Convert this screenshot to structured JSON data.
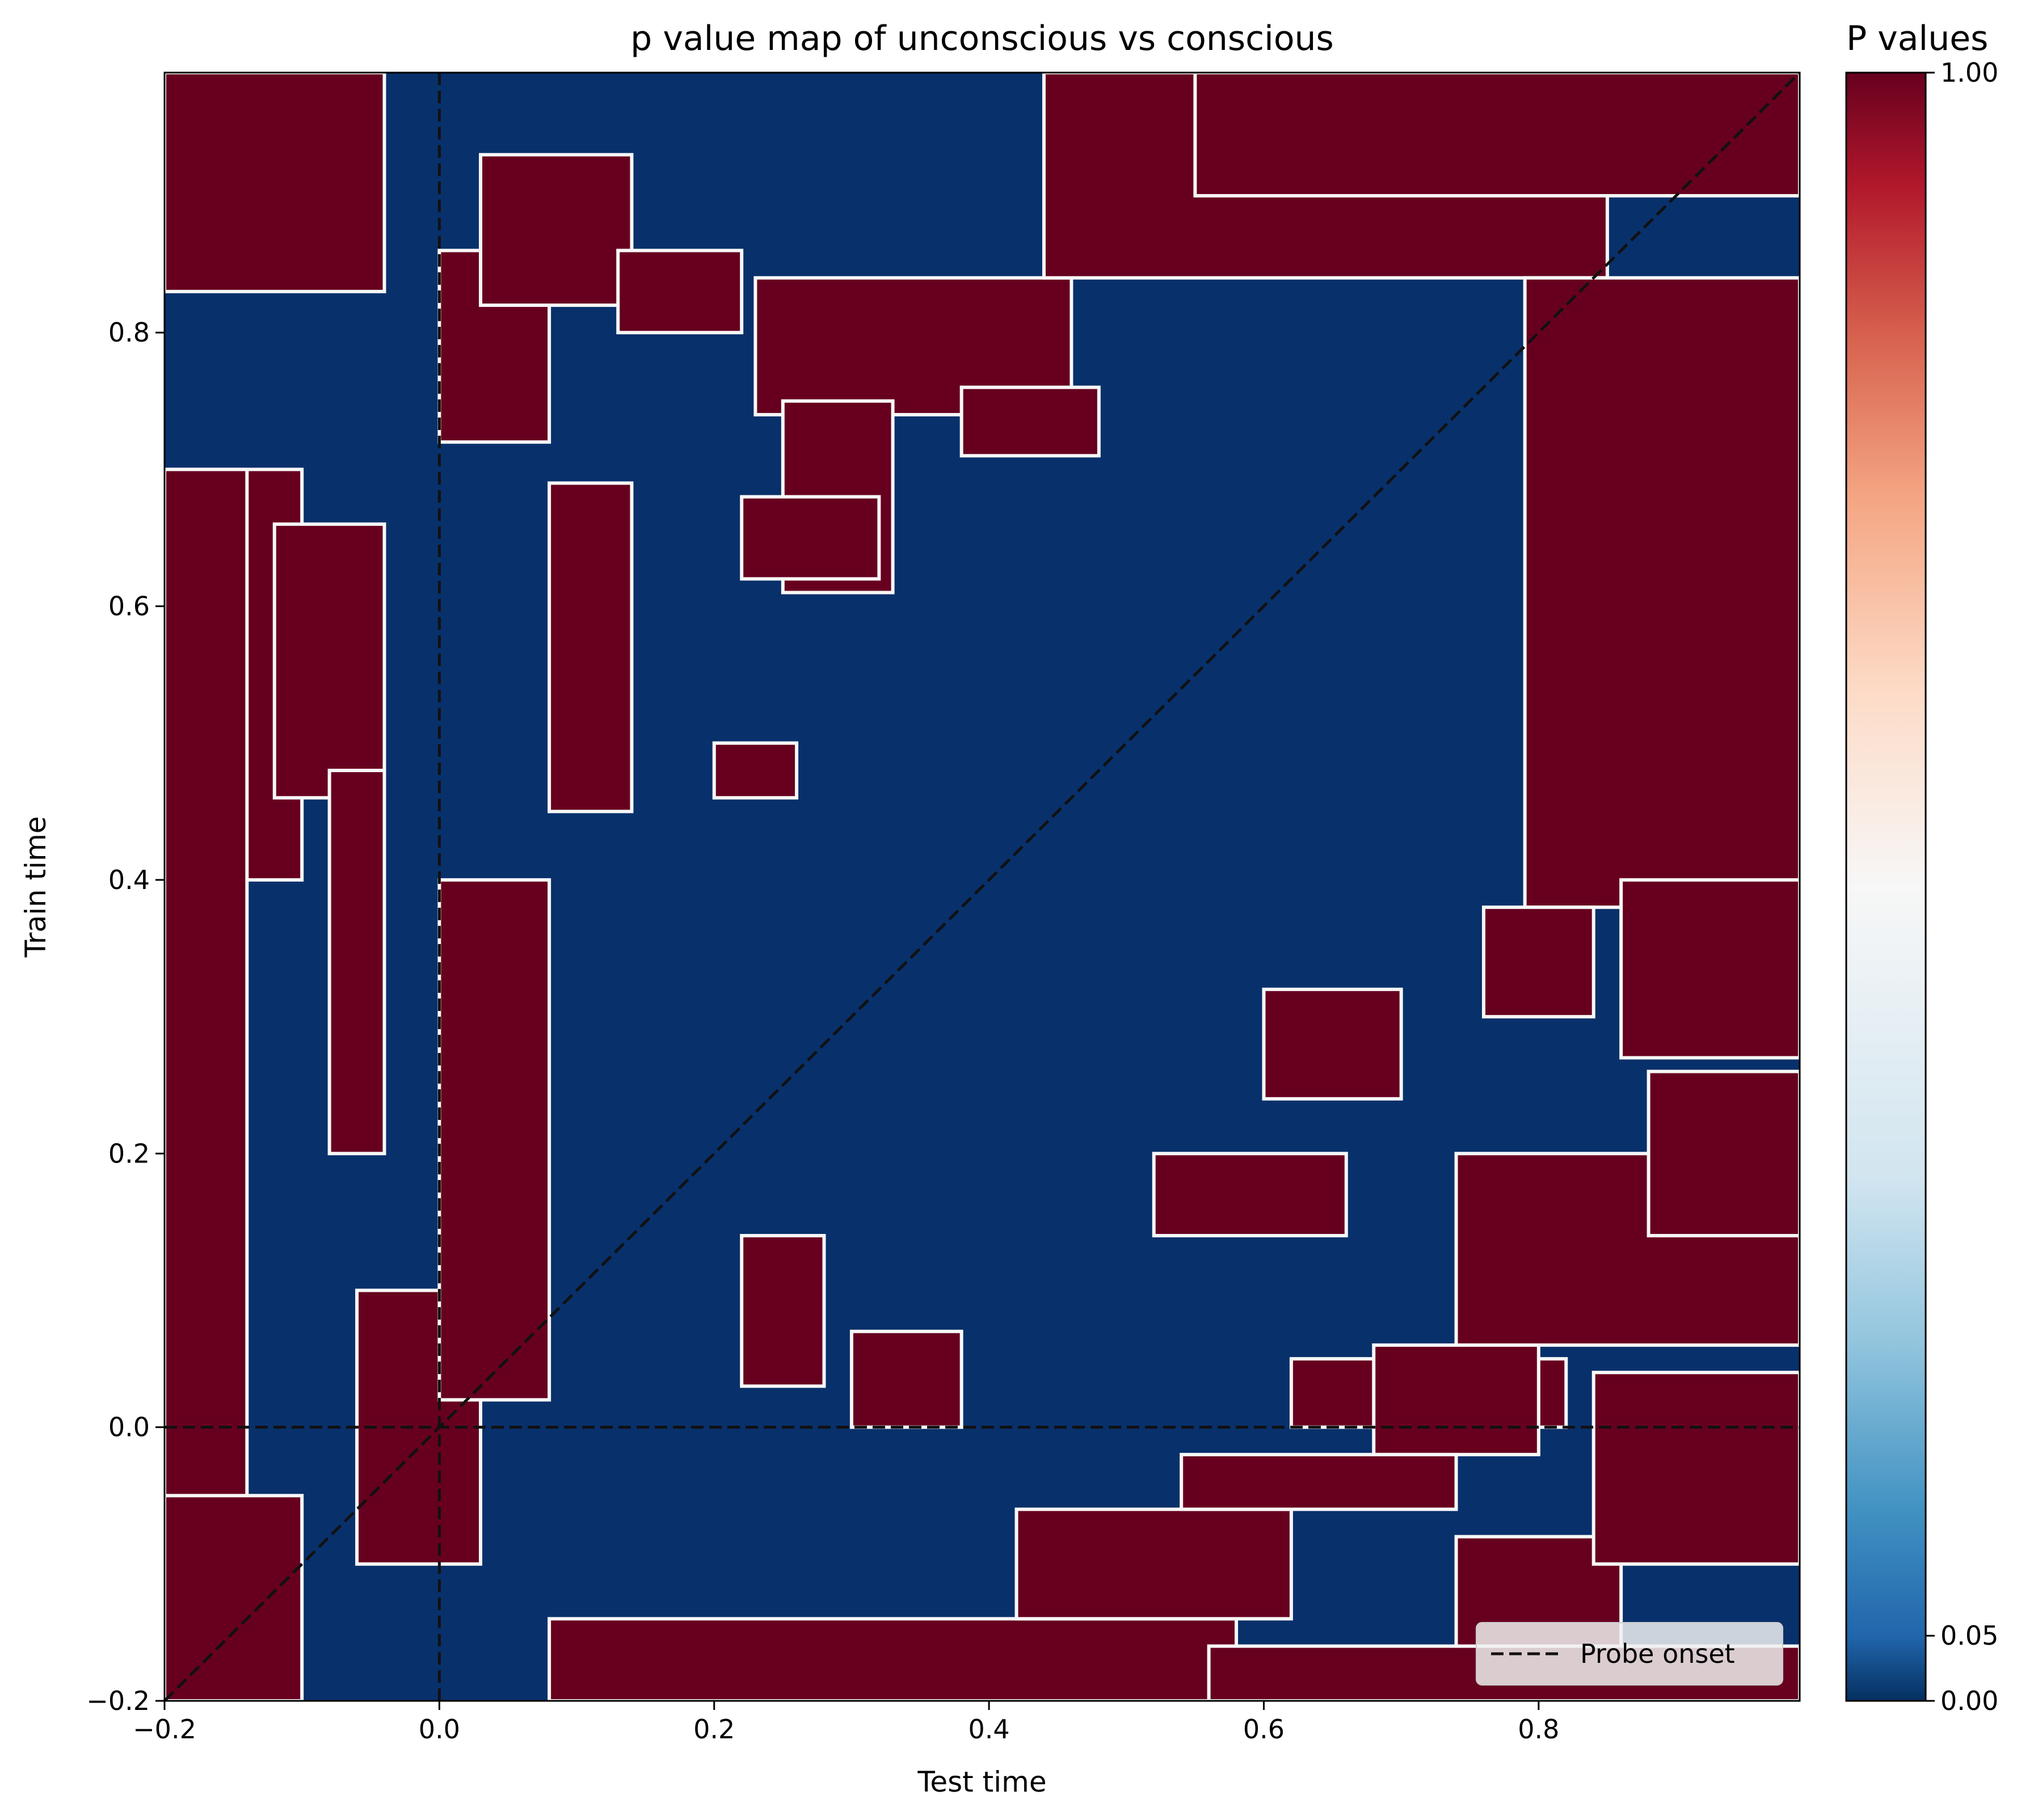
{
  "chart_data": {
    "type": "heatmap",
    "title": "p value map of unconscious vs conscious",
    "xlabel": "Test time",
    "ylabel": "Train time",
    "xlim": [
      -0.2,
      0.99
    ],
    "ylim": [
      -0.2,
      0.99
    ],
    "x_ticks": [
      "−0.2",
      "0.0",
      "0.2",
      "0.4",
      "0.6",
      "0.8"
    ],
    "y_ticks": [
      "−0.2",
      "0.0",
      "0.2",
      "0.4",
      "0.6",
      "0.8"
    ],
    "x_tick_values": [
      -0.2,
      0.0,
      0.2,
      0.4,
      0.6,
      0.8
    ],
    "y_tick_values": [
      -0.2,
      0.0,
      0.2,
      0.4,
      0.6,
      0.8
    ],
    "colorbar": {
      "title": "P values",
      "ticks": [
        "0.00",
        "0.05",
        "1.00"
      ],
      "tick_values": [
        0.0,
        0.05,
        1.0
      ],
      "colormap": "RdBu_r"
    },
    "colors": {
      "significant": "#08306b",
      "nonsignificant": "#67001f",
      "boundary": "#f7f7f7"
    },
    "reference_lines": {
      "probe_onset_x": 0.0,
      "probe_onset_y": 0.0,
      "diagonal": true,
      "style": "dashed",
      "color": "#111111"
    },
    "legend": {
      "placement": "lower right",
      "entries": [
        "Probe onset"
      ]
    },
    "nonsignificant_regions": [
      {
        "x": [
          -0.2,
          -0.04
        ],
        "y": [
          0.83,
          0.99
        ]
      },
      {
        "x": [
          -0.2,
          -0.1
        ],
        "y": [
          0.4,
          0.7
        ]
      },
      {
        "x": [
          -0.2,
          -0.14
        ],
        "y": [
          -0.2,
          0.7
        ]
      },
      {
        "x": [
          -0.12,
          -0.04
        ],
        "y": [
          0.46,
          0.66
        ]
      },
      {
        "x": [
          -0.08,
          -0.04
        ],
        "y": [
          0.2,
          0.48
        ]
      },
      {
        "x": [
          -0.06,
          0.03
        ],
        "y": [
          -0.1,
          0.1
        ]
      },
      {
        "x": [
          -0.2,
          -0.1
        ],
        "y": [
          -0.2,
          -0.05
        ]
      },
      {
        "x": [
          0.0,
          0.08
        ],
        "y": [
          0.72,
          0.86
        ]
      },
      {
        "x": [
          0.0,
          0.08
        ],
        "y": [
          0.02,
          0.4
        ]
      },
      {
        "x": [
          0.08,
          0.14
        ],
        "y": [
          0.45,
          0.69
        ]
      },
      {
        "x": [
          0.03,
          0.14
        ],
        "y": [
          0.82,
          0.93
        ]
      },
      {
        "x": [
          0.13,
          0.22
        ],
        "y": [
          0.8,
          0.86
        ]
      },
      {
        "x": [
          0.23,
          0.46
        ],
        "y": [
          0.74,
          0.84
        ]
      },
      {
        "x": [
          0.25,
          0.33
        ],
        "y": [
          0.61,
          0.75
        ]
      },
      {
        "x": [
          0.44,
          0.85
        ],
        "y": [
          0.84,
          0.99
        ]
      },
      {
        "x": [
          0.55,
          0.99
        ],
        "y": [
          0.9,
          0.99
        ]
      },
      {
        "x": [
          0.79,
          0.99
        ],
        "y": [
          0.38,
          0.84
        ]
      },
      {
        "x": [
          0.86,
          0.99
        ],
        "y": [
          0.27,
          0.4
        ]
      },
      {
        "x": [
          0.76,
          0.84
        ],
        "y": [
          0.3,
          0.38
        ]
      },
      {
        "x": [
          0.74,
          0.99
        ],
        "y": [
          0.06,
          0.2
        ]
      },
      {
        "x": [
          0.88,
          0.99
        ],
        "y": [
          0.14,
          0.26
        ]
      },
      {
        "x": [
          0.3,
          0.38
        ],
        "y": [
          0.0,
          0.07
        ]
      },
      {
        "x": [
          0.22,
          0.28
        ],
        "y": [
          0.03,
          0.14
        ]
      },
      {
        "x": [
          0.52,
          0.66
        ],
        "y": [
          0.14,
          0.2
        ]
      },
      {
        "x": [
          0.6,
          0.7
        ],
        "y": [
          0.24,
          0.32
        ]
      },
      {
        "x": [
          0.62,
          0.82
        ],
        "y": [
          0.0,
          0.05
        ]
      },
      {
        "x": [
          0.68,
          0.8
        ],
        "y": [
          -0.02,
          0.06
        ]
      },
      {
        "x": [
          0.08,
          0.58
        ],
        "y": [
          -0.2,
          -0.14
        ]
      },
      {
        "x": [
          0.42,
          0.62
        ],
        "y": [
          -0.14,
          -0.06
        ]
      },
      {
        "x": [
          0.54,
          0.74
        ],
        "y": [
          -0.06,
          -0.02
        ]
      },
      {
        "x": [
          0.56,
          0.99
        ],
        "y": [
          -0.2,
          -0.16
        ]
      },
      {
        "x": [
          0.74,
          0.86
        ],
        "y": [
          -0.16,
          -0.08
        ]
      },
      {
        "x": [
          0.84,
          0.99
        ],
        "y": [
          -0.1,
          0.04
        ]
      },
      {
        "x": [
          0.2,
          0.26
        ],
        "y": [
          0.46,
          0.5
        ]
      },
      {
        "x": [
          0.38,
          0.48
        ],
        "y": [
          0.71,
          0.76
        ]
      },
      {
        "x": [
          0.22,
          0.32
        ],
        "y": [
          0.62,
          0.68
        ]
      }
    ]
  }
}
